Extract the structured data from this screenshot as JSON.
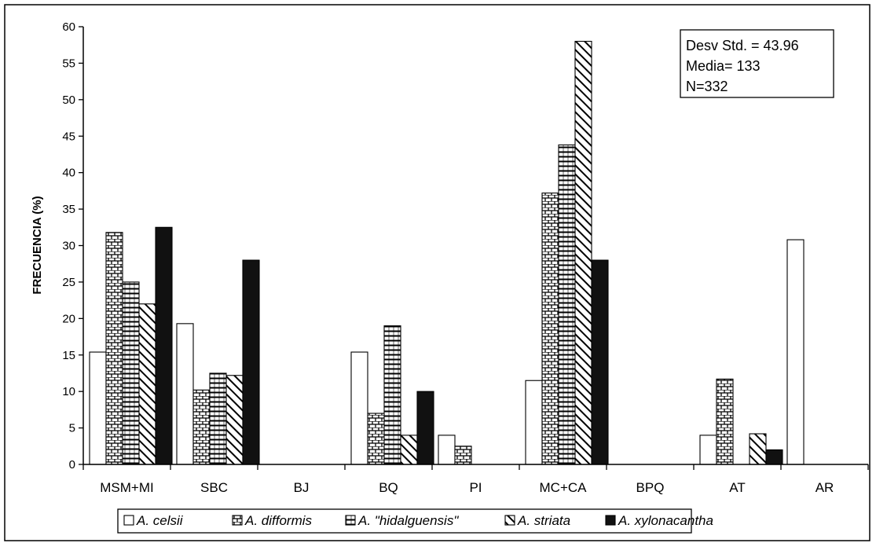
{
  "chart_data": {
    "type": "bar",
    "title": "",
    "xlabel": "",
    "ylabel": "FRECUENCIA (%)",
    "ylim": [
      0,
      60
    ],
    "yticks": [
      0,
      5,
      10,
      15,
      20,
      25,
      30,
      35,
      40,
      45,
      50,
      55,
      60
    ],
    "categories": [
      "MSM+MI",
      "SBC",
      "BJ",
      "BQ",
      "PI",
      "MC+CA",
      "BPQ",
      "AT",
      "AR"
    ],
    "series": [
      {
        "name": "A. celsii",
        "pattern": "white",
        "values": [
          15.4,
          19.3,
          0,
          15.4,
          4,
          11.5,
          0,
          4,
          30.8
        ]
      },
      {
        "name": "A. difformis",
        "pattern": "bricks",
        "values": [
          31.8,
          10.2,
          0,
          7,
          2.5,
          37.2,
          0,
          11.7,
          0
        ]
      },
      {
        "name": "A. \"hidalguensis\"",
        "pattern": "hlines",
        "values": [
          25,
          12.5,
          0,
          19,
          0,
          43.8,
          0,
          0,
          0
        ]
      },
      {
        "name": "A. striata",
        "pattern": "diagonal",
        "values": [
          22,
          12.2,
          0,
          4,
          0,
          58,
          0,
          4.2,
          0
        ]
      },
      {
        "name": "A. xylonacantha",
        "pattern": "black",
        "values": [
          32.5,
          28,
          0,
          10,
          0,
          28,
          0,
          2,
          0
        ]
      }
    ],
    "legend_position": "bottom",
    "annotation": {
      "lines": [
        "Desv Std. = 43.96",
        "Media= 133",
        "N=332"
      ]
    },
    "colors": {
      "bar_stroke": "#000000",
      "fill_dark": "#111111",
      "background": "#ffffff"
    }
  }
}
